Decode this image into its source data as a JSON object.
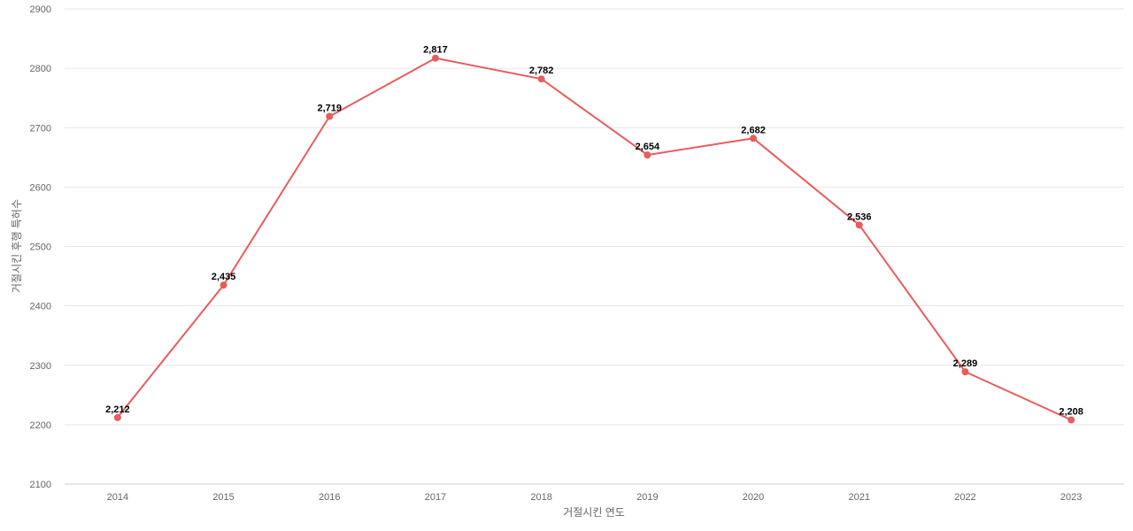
{
  "chart_data": {
    "type": "line",
    "title": "",
    "xlabel": "거절시킨 연도",
    "ylabel": "거절시킨 후행 특허수",
    "categories": [
      "2014",
      "2015",
      "2016",
      "2017",
      "2018",
      "2019",
      "2020",
      "2021",
      "2022",
      "2023"
    ],
    "series": [
      {
        "values": [
          2212,
          2435,
          2719,
          2817,
          2782,
          2654,
          2682,
          2536,
          2289,
          2208
        ],
        "labels": [
          "2,212",
          "2,435",
          "2,719",
          "2,817",
          "2,782",
          "2,654",
          "2,682",
          "2,536",
          "2,289",
          "2,208"
        ],
        "color": "#e85c5c"
      }
    ],
    "ylim": [
      2100,
      2900
    ],
    "yticks": [
      "2100",
      "2200",
      "2300",
      "2400",
      "2500",
      "2600",
      "2700",
      "2800",
      "2900"
    ],
    "grid": true,
    "legend": "none"
  }
}
